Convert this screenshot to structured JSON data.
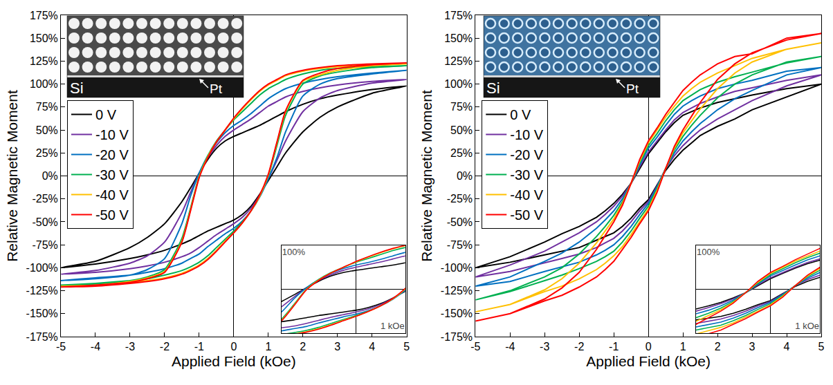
{
  "chart_data": [
    {
      "type": "line",
      "xlabel": "Applied Field (kOe)",
      "ylabel": "Relative Magnetic Moment",
      "xlim": [
        -5,
        5
      ],
      "ylim": [
        -175,
        175
      ],
      "xticks": [
        -5,
        -4,
        -3,
        -2,
        -1,
        0,
        1,
        2,
        3,
        4,
        5
      ],
      "yticks": [
        {
          "value": -175,
          "label": "-175%"
        },
        {
          "value": -150,
          "label": "-150%"
        },
        {
          "value": -125,
          "label": "-125%"
        },
        {
          "value": -100,
          "label": "-100%"
        },
        {
          "value": -75,
          "label": "-75%"
        },
        {
          "value": -50,
          "label": "-50%"
        },
        {
          "value": -25,
          "label": "-25%"
        },
        {
          "value": 0,
          "label": "0%"
        },
        {
          "value": 25,
          "label": "25%"
        },
        {
          "value": 50,
          "label": "50%"
        },
        {
          "value": 75,
          "label": "75%"
        },
        {
          "value": 100,
          "label": "100%"
        },
        {
          "value": 125,
          "label": "125%"
        },
        {
          "value": 150,
          "label": "150%"
        },
        {
          "value": 175,
          "label": "175%"
        }
      ],
      "grid": false,
      "legend": "upper left",
      "image_labels": {
        "substrate": "Si",
        "film": "Pt"
      },
      "inset": {
        "xlim": [
          -1.5,
          1
        ],
        "ylim": [
          -100,
          100
        ],
        "xticks": [
          {
            "value": 1,
            "label": "1 kOe"
          }
        ],
        "yticks": [
          {
            "value": 100,
            "label": "100%"
          }
        ]
      },
      "x": [
        5,
        4,
        3,
        2.5,
        2,
        1.5,
        1.25,
        1,
        0.75,
        0.5,
        0.25,
        0,
        -0.25,
        -0.5,
        -0.75,
        -1,
        -1.25,
        -1.5,
        -2,
        -2.5,
        -3,
        -4,
        -5,
        -4,
        -3,
        -2.5,
        -2,
        -1.5,
        -1.25,
        -1,
        -0.75,
        -0.5,
        -0.25,
        0,
        0.25,
        0.5,
        0.75,
        1,
        1.25,
        1.5,
        2,
        2.5,
        3,
        4,
        5
      ],
      "series": [
        {
          "name": "0 V",
          "color": "#000000",
          "values": [
            98,
            94,
            88,
            84,
            78,
            70,
            65,
            60,
            55,
            51,
            47,
            43,
            38,
            30,
            18,
            3,
            -13,
            -28,
            -52,
            -67,
            -78,
            -93,
            -100,
            -96,
            -90,
            -86,
            -81,
            -74,
            -70,
            -65,
            -60,
            -56,
            -52,
            -48,
            -42,
            -33,
            -20,
            -5,
            10,
            25,
            48,
            64,
            75,
            90,
            98
          ]
        },
        {
          "name": "-10 V",
          "color": "#7030a0",
          "values": [
            105,
            103,
            99,
            96,
            92,
            86,
            81,
            76,
            69,
            62,
            56,
            50,
            43,
            33,
            20,
            3,
            -18,
            -40,
            -72,
            -87,
            -95,
            -103,
            -107,
            -105,
            -101,
            -98,
            -94,
            -88,
            -84,
            -78,
            -71,
            -64,
            -58,
            -52,
            -45,
            -35,
            -21,
            -3,
            17,
            38,
            70,
            85,
            93,
            101,
            105
          ]
        },
        {
          "name": "-20 V",
          "color": "#0070c0",
          "values": [
            115,
            112,
            108,
            105,
            101,
            95,
            90,
            84,
            76,
            68,
            61,
            55,
            47,
            36,
            22,
            3,
            -22,
            -52,
            -90,
            -102,
            -108,
            -112,
            -114,
            -111,
            -108,
            -105,
            -101,
            -95,
            -90,
            -85,
            -77,
            -70,
            -63,
            -57,
            -49,
            -38,
            -23,
            -3,
            20,
            48,
            87,
            100,
            106,
            111,
            115
          ]
        },
        {
          "name": "-30 V",
          "color": "#00b050",
          "values": [
            120,
            119,
            117,
            115,
            111,
            105,
            100,
            95,
            88,
            79,
            70,
            61,
            50,
            38,
            22,
            0,
            -35,
            -68,
            -102,
            -110,
            -114,
            -118,
            -119,
            -117,
            -114,
            -112,
            -108,
            -103,
            -99,
            -94,
            -87,
            -78,
            -69,
            -60,
            -50,
            -38,
            -22,
            0,
            33,
            66,
            100,
            109,
            113,
            118,
            120
          ]
        },
        {
          "name": "-40 V",
          "color": "#ffc000",
          "values": [
            122,
            121,
            119,
            117,
            114,
            109,
            104,
            99,
            92,
            83,
            73,
            62,
            50,
            37,
            21,
            -1,
            -37,
            -71,
            -104,
            -111,
            -115,
            -119,
            -120,
            -119,
            -116,
            -114,
            -111,
            -106,
            -102,
            -97,
            -90,
            -81,
            -71,
            -62,
            -51,
            -38,
            -22,
            1,
            36,
            70,
            103,
            110,
            115,
            120,
            122
          ]
        },
        {
          "name": "-50 V",
          "color": "#ff0000",
          "values": [
            123,
            122,
            120,
            118,
            115,
            110,
            105,
            100,
            93,
            84,
            74,
            63,
            50,
            37,
            20,
            -2,
            -38,
            -72,
            -105,
            -112,
            -116,
            -119,
            -121,
            -120,
            -117,
            -115,
            -112,
            -107,
            -103,
            -98,
            -91,
            -82,
            -72,
            -62,
            -51,
            -38,
            -21,
            2,
            37,
            71,
            104,
            112,
            117,
            121,
            123
          ]
        }
      ]
    },
    {
      "type": "line",
      "xlabel": "Applied Field (kOe)",
      "ylabel": "Relative Magnetic Moment",
      "xlim": [
        -5,
        5
      ],
      "ylim": [
        -175,
        175
      ],
      "xticks": [
        -5,
        -4,
        -3,
        -2,
        -1,
        0,
        1,
        2,
        3,
        4,
        5
      ],
      "yticks": [
        {
          "value": -175,
          "label": "-175%"
        },
        {
          "value": -150,
          "label": "-150%"
        },
        {
          "value": -125,
          "label": "-125%"
        },
        {
          "value": -100,
          "label": "-100%"
        },
        {
          "value": -75,
          "label": "-75%"
        },
        {
          "value": -50,
          "label": "-50%"
        },
        {
          "value": -25,
          "label": "-25%"
        },
        {
          "value": 0,
          "label": "0%"
        },
        {
          "value": 25,
          "label": "25%"
        },
        {
          "value": 50,
          "label": "50%"
        },
        {
          "value": 75,
          "label": "75%"
        },
        {
          "value": 100,
          "label": "100%"
        },
        {
          "value": 125,
          "label": "125%"
        },
        {
          "value": 150,
          "label": "150%"
        },
        {
          "value": 175,
          "label": "175%"
        }
      ],
      "grid": false,
      "legend": "upper left",
      "image_labels": {
        "substrate": "Si",
        "film": "Pt"
      },
      "inset": {
        "xlim": [
          -1.5,
          1
        ],
        "ylim": [
          -100,
          100
        ],
        "xticks": [
          {
            "value": 1,
            "label": "1 kOe"
          }
        ],
        "yticks": [
          {
            "value": 100,
            "label": "100%"
          }
        ]
      },
      "x": [
        5,
        4,
        3,
        2.5,
        2,
        1.5,
        1.25,
        1,
        0.75,
        0.5,
        0.25,
        0,
        -0.25,
        -0.5,
        -0.75,
        -1,
        -1.25,
        -1.5,
        -2,
        -2.5,
        -3,
        -4,
        -5,
        -4,
        -3,
        -2.5,
        -2,
        -1.5,
        -1.25,
        -1,
        -0.75,
        -0.5,
        -0.25,
        0,
        0.25,
        0.5,
        0.75,
        1,
        1.25,
        1.5,
        2,
        2.5,
        3,
        4,
        5
      ],
      "series": [
        {
          "name": "0 V",
          "color": "#000000",
          "values": [
            100,
            95,
            88,
            84,
            80,
            74,
            70,
            66,
            58,
            48,
            36,
            24,
            8,
            -8,
            -20,
            -30,
            -38,
            -45,
            -55,
            -63,
            -72,
            -88,
            -100,
            -94,
            -86,
            -82,
            -78,
            -70,
            -66,
            -62,
            -55,
            -46,
            -35,
            -26,
            -10,
            6,
            18,
            28,
            36,
            44,
            54,
            62,
            72,
            86,
            100
          ]
        },
        {
          "name": "-10 V",
          "color": "#7030a0",
          "values": [
            110,
            104,
            96,
            92,
            86,
            79,
            74,
            69,
            61,
            50,
            38,
            26,
            10,
            -8,
            -22,
            -33,
            -42,
            -50,
            -62,
            -72,
            -82,
            -97,
            -110,
            -104,
            -95,
            -90,
            -85,
            -78,
            -73,
            -68,
            -60,
            -50,
            -38,
            -28,
            -11,
            8,
            22,
            33,
            42,
            50,
            62,
            72,
            82,
            98,
            110
          ]
        },
        {
          "name": "-20 V",
          "color": "#0070c0",
          "values": [
            118,
            114,
            104,
            100,
            95,
            87,
            82,
            76,
            67,
            55,
            42,
            30,
            12,
            -8,
            -25,
            -38,
            -48,
            -57,
            -72,
            -84,
            -93,
            -110,
            -120,
            -115,
            -104,
            -99,
            -94,
            -86,
            -81,
            -75,
            -66,
            -55,
            -42,
            -30,
            -12,
            8,
            25,
            38,
            48,
            57,
            72,
            84,
            93,
            110,
            118
          ]
        },
        {
          "name": "-30 V",
          "color": "#00b050",
          "values": [
            130,
            123,
            113,
            108,
            102,
            94,
            88,
            82,
            72,
            60,
            46,
            33,
            14,
            -8,
            -28,
            -43,
            -55,
            -66,
            -85,
            -100,
            -110,
            -125,
            -135,
            -126,
            -114,
            -108,
            -101,
            -93,
            -88,
            -82,
            -72,
            -60,
            -46,
            -33,
            -14,
            8,
            28,
            43,
            55,
            66,
            85,
            100,
            110,
            124,
            130
          ]
        },
        {
          "name": "-40 V",
          "color": "#ffc000",
          "values": [
            145,
            138,
            128,
            120,
            112,
            102,
            95,
            87,
            76,
            64,
            50,
            36,
            16,
            -8,
            -30,
            -47,
            -60,
            -73,
            -95,
            -112,
            -124,
            -140,
            -148,
            -140,
            -126,
            -120,
            -112,
            -102,
            -95,
            -87,
            -77,
            -64,
            -50,
            -36,
            -16,
            8,
            30,
            47,
            60,
            73,
            95,
            112,
            124,
            138,
            145
          ]
        },
        {
          "name": "-50 V",
          "color": "#ff0000",
          "values": [
            155,
            150,
            133,
            130,
            122,
            110,
            102,
            93,
            80,
            67,
            52,
            38,
            18,
            -8,
            -32,
            -50,
            -65,
            -80,
            -105,
            -122,
            -134,
            -150,
            -158,
            -150,
            -136,
            -130,
            -121,
            -110,
            -102,
            -93,
            -80,
            -67,
            -52,
            -38,
            -18,
            8,
            32,
            50,
            65,
            80,
            105,
            122,
            134,
            148,
            155
          ]
        }
      ]
    }
  ]
}
